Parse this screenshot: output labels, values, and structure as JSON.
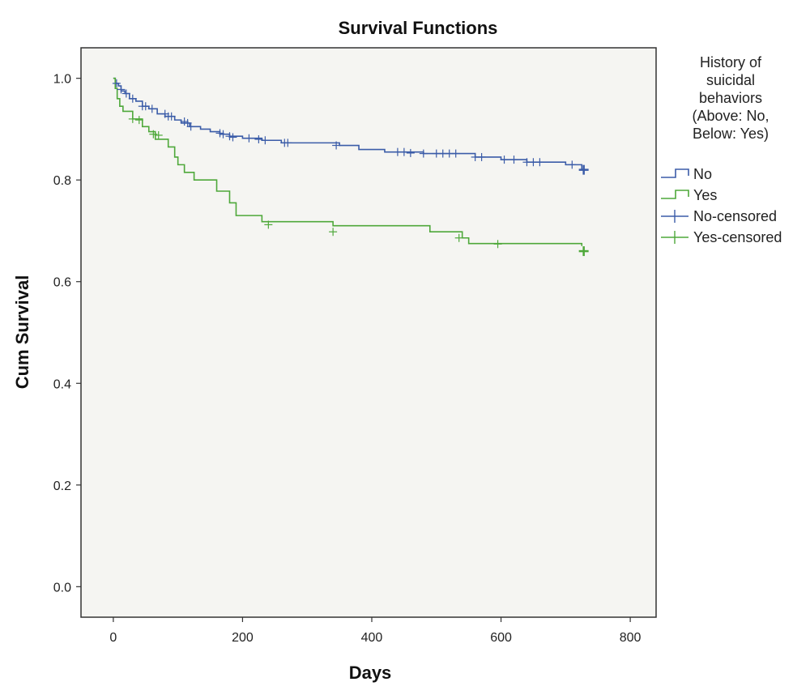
{
  "chart_data": {
    "type": "line",
    "subtype": "kaplan-meier step",
    "title": "Survival Functions",
    "xlabel": "Days",
    "ylabel": "Cum Survival",
    "xlim": [
      -50,
      840
    ],
    "ylim": [
      -0.06,
      1.06
    ],
    "xticks": [
      0,
      200,
      400,
      600,
      800
    ],
    "yticks": [
      0.0,
      0.2,
      0.4,
      0.6,
      0.8,
      1.0
    ],
    "xtick_labels": [
      "0",
      "200",
      "400",
      "600",
      "800"
    ],
    "ytick_labels": [
      "0.0",
      "0.2",
      "0.4",
      "0.6",
      "0.8",
      "1.0"
    ],
    "grid": false,
    "legend": {
      "placement": "right",
      "title_lines": [
        "History of",
        "suicidal",
        "behaviors",
        "(Above: No,",
        "Below: Yes)"
      ],
      "entries": [
        "No",
        "Yes",
        "No-censored",
        "Yes-censored"
      ]
    },
    "series": [
      {
        "name": "No",
        "color": "#3b5ca8",
        "x": [
          0,
          3,
          8,
          12,
          18,
          25,
          35,
          45,
          55,
          68,
          80,
          95,
          105,
          118,
          135,
          150,
          165,
          180,
          200,
          230,
          260,
          350,
          380,
          420,
          480,
          560,
          600,
          640,
          700,
          725
        ],
        "y": [
          1.0,
          0.99,
          0.985,
          0.975,
          0.97,
          0.96,
          0.955,
          0.945,
          0.94,
          0.93,
          0.925,
          0.918,
          0.912,
          0.905,
          0.9,
          0.895,
          0.89,
          0.886,
          0.882,
          0.878,
          0.873,
          0.868,
          0.86,
          0.855,
          0.852,
          0.845,
          0.84,
          0.835,
          0.83,
          0.82
        ]
      },
      {
        "name": "Yes",
        "color": "#4ea83a",
        "x": [
          0,
          3,
          6,
          10,
          15,
          30,
          45,
          55,
          65,
          85,
          95,
          100,
          110,
          125,
          160,
          180,
          190,
          230,
          340,
          490,
          540,
          550,
          725
        ],
        "y": [
          1.0,
          0.98,
          0.96,
          0.945,
          0.935,
          0.92,
          0.905,
          0.895,
          0.88,
          0.865,
          0.845,
          0.83,
          0.815,
          0.8,
          0.778,
          0.755,
          0.73,
          0.718,
          0.71,
          0.698,
          0.686,
          0.675,
          0.67
        ]
      }
    ],
    "censored": [
      {
        "name": "No-censored",
        "x": [
          5,
          12,
          20,
          30,
          45,
          50,
          60,
          80,
          85,
          90,
          110,
          115,
          120,
          165,
          170,
          180,
          185,
          210,
          225,
          235,
          265,
          270,
          345,
          440,
          450,
          460,
          480,
          500,
          510,
          520,
          530,
          560,
          570,
          605,
          620,
          640,
          650,
          660,
          710,
          728
        ],
        "y": [
          0.99,
          0.978,
          0.97,
          0.96,
          0.945,
          0.945,
          0.94,
          0.93,
          0.925,
          0.925,
          0.915,
          0.912,
          0.905,
          0.892,
          0.89,
          0.886,
          0.884,
          0.882,
          0.88,
          0.878,
          0.873,
          0.873,
          0.868,
          0.855,
          0.855,
          0.853,
          0.852,
          0.852,
          0.852,
          0.852,
          0.852,
          0.845,
          0.845,
          0.84,
          0.84,
          0.835,
          0.835,
          0.835,
          0.83,
          0.82
        ]
      },
      {
        "name": "Yes-censored",
        "x": [
          30,
          40,
          62,
          70,
          240,
          340,
          535,
          595,
          728
        ],
        "y": [
          0.92,
          0.918,
          0.89,
          0.888,
          0.712,
          0.698,
          0.686,
          0.674,
          0.66
        ]
      }
    ]
  }
}
